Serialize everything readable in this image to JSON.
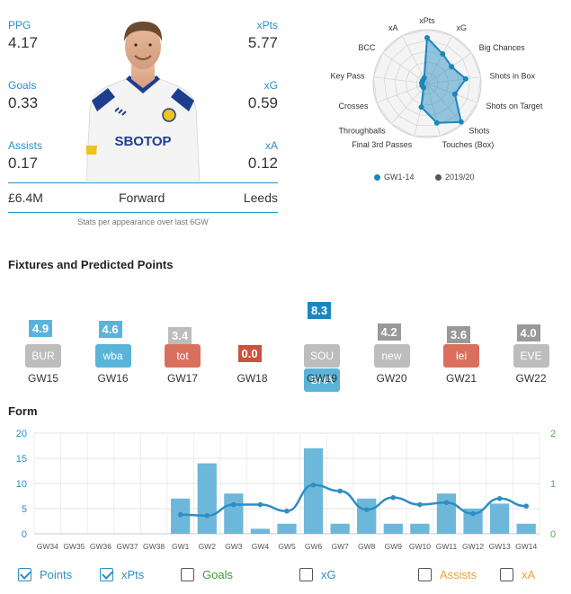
{
  "player": {
    "stats": [
      {
        "label": "PPG",
        "value": "4.17"
      },
      {
        "label": "xPts",
        "value": "5.77"
      },
      {
        "label": "Goals",
        "value": "0.33"
      },
      {
        "label": "xG",
        "value": "0.59"
      },
      {
        "label": "Assists",
        "value": "0.17"
      },
      {
        "label": "xA",
        "value": "0.12"
      }
    ],
    "price": "£6.4M",
    "position": "Forward",
    "team": "Leeds",
    "shirt_sponsor": "SBOTOP",
    "footnote": "Stats per appearance over last 6GW"
  },
  "radar": {
    "labels": [
      "xPts",
      "xG",
      "Big Chances",
      "Shots in Box",
      "Shots on Target",
      "Shots",
      "Touches (Box)",
      "Final 3rd Passes",
      "Throughballs",
      "Crosses",
      "Key Pass",
      "BCC",
      "xA"
    ],
    "current": [
      0.85,
      0.62,
      0.55,
      0.72,
      0.55,
      0.95,
      0.75,
      0.45,
      0.1,
      0.1,
      0.1,
      0.1,
      0.12
    ],
    "legend": [
      {
        "label": "GW1-14",
        "color": "#1a87bf"
      },
      {
        "label": "2019/20",
        "color": "#555555"
      }
    ]
  },
  "fixtures": {
    "title": "Fixtures and Predicted Points",
    "items": [
      {
        "gw": "GW15",
        "team": "BUR",
        "points": "4.9",
        "team_color": "#bdbdbd",
        "pts_color": "#5ab4da",
        "level": 4.9
      },
      {
        "gw": "GW16",
        "team": "wba",
        "points": "4.6",
        "team_color": "#5ab4da",
        "pts_color": "#5ab4da",
        "level": 4.6
      },
      {
        "gw": "GW17",
        "team": "tot",
        "points": "3.4",
        "team_color": "#d9705e",
        "pts_color": "#bdbdbd",
        "level": 3.4
      },
      {
        "gw": "GW18",
        "team": "",
        "points": "0.0",
        "team_color": "",
        "pts_color": "#c9533f",
        "level": 0
      },
      {
        "gw": "GW19",
        "team": "SOU",
        "team2": "BHA",
        "points": "8.3",
        "team_color": "#bdbdbd",
        "team2_color": "#5ab4da",
        "pts_color": "#1a87bf",
        "level": 8.3
      },
      {
        "gw": "GW20",
        "team": "new",
        "points": "4.2",
        "team_color": "#bdbdbd",
        "pts_color": "#999999",
        "level": 4.2
      },
      {
        "gw": "GW21",
        "team": "lei",
        "points": "3.6",
        "team_color": "#d9705e",
        "pts_color": "#999999",
        "level": 3.6
      },
      {
        "gw": "GW22",
        "team": "EVE",
        "points": "4.0",
        "team_color": "#bdbdbd",
        "pts_color": "#999999",
        "level": 4.0
      }
    ]
  },
  "form": {
    "title": "Form",
    "toggles": [
      {
        "label": "Points",
        "checked": true,
        "color": "#2d8ec4"
      },
      {
        "label": "xPts",
        "checked": true,
        "color": "#2d8ec4"
      },
      {
        "label": "Goals",
        "checked": false,
        "color": "#3a9a3a"
      },
      {
        "label": "xG",
        "checked": false,
        "color": "#2d8ec4"
      },
      {
        "label": "Assists",
        "checked": false,
        "color": "#e8a23a"
      },
      {
        "label": "xA",
        "checked": false,
        "color": "#e8a23a"
      }
    ]
  },
  "chart_data": {
    "type": "bar",
    "categories": [
      "GW34",
      "GW35",
      "GW36",
      "GW37",
      "GW38",
      "GW1",
      "GW2",
      "GW3",
      "GW4",
      "GW5",
      "GW6",
      "GW7",
      "GW8",
      "GW9",
      "GW10",
      "GW11",
      "GW12",
      "GW13",
      "GW14"
    ],
    "series": [
      {
        "name": "Points",
        "type": "bar",
        "axis": "left",
        "color": "#6db8da",
        "values": [
          null,
          null,
          null,
          null,
          null,
          7,
          14,
          8,
          1,
          2,
          17,
          2,
          7,
          2,
          2,
          8,
          5,
          6,
          2
        ]
      },
      {
        "name": "xPts",
        "type": "line",
        "axis": "right",
        "color": "#2d8ec4",
        "values": [
          null,
          null,
          null,
          null,
          null,
          0.38,
          0.36,
          0.58,
          0.58,
          0.45,
          0.97,
          0.85,
          0.48,
          0.72,
          0.58,
          0.62,
          0.4,
          0.7,
          0.55
        ]
      }
    ],
    "ylim_left": [
      0,
      20
    ],
    "yticks_left": [
      0,
      5,
      10,
      15,
      20
    ],
    "ylim_right": [
      0,
      2
    ],
    "yticks_right": [
      0,
      1,
      2
    ],
    "grid": true,
    "left_axis_color": "#2d8ec4",
    "right_axis_color": "#4caf50"
  }
}
